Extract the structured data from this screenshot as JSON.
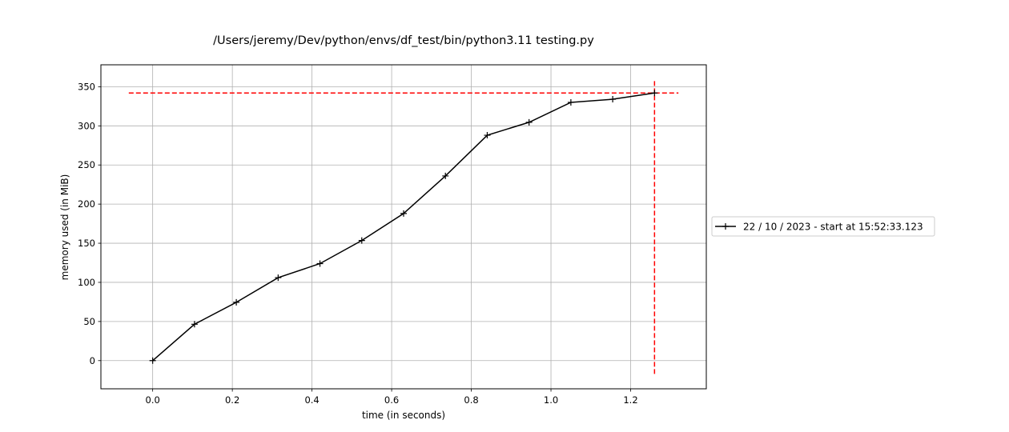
{
  "chart_data": {
    "type": "line",
    "title": "/Users/jeremy/Dev/python/envs/df_test/bin/python3.11 testing.py",
    "xlabel": "time (in seconds)",
    "ylabel": "memory used (in MiB)",
    "xlim": [
      -0.13,
      1.39
    ],
    "ylim": [
      -36,
      378
    ],
    "xticks": [
      0.0,
      0.2,
      0.4,
      0.6,
      0.8,
      1.0,
      1.2
    ],
    "xtick_labels": [
      "0.0",
      "0.2",
      "0.4",
      "0.6",
      "0.8",
      "1.0",
      "1.2"
    ],
    "yticks": [
      0,
      50,
      100,
      150,
      200,
      250,
      300,
      350
    ],
    "ytick_labels": [
      "0",
      "50",
      "100",
      "150",
      "200",
      "250",
      "300",
      "350"
    ],
    "grid": true,
    "legend_position": "center-right, outside plot",
    "series": [
      {
        "name": "22 / 10 / 2023 - start at 15:52:33.123",
        "color": "#000000",
        "marker": "plus",
        "x": [
          0.0,
          0.105,
          0.21,
          0.315,
          0.42,
          0.525,
          0.63,
          0.735,
          0.84,
          0.945,
          1.05,
          1.155,
          1.26
        ],
        "y": [
          0,
          46.5,
          74.5,
          106,
          124,
          153.5,
          188,
          236,
          288,
          304.5,
          330,
          334,
          342
        ]
      }
    ],
    "reference_lines": [
      {
        "orientation": "horizontal",
        "value": 342,
        "from": -0.06,
        "to": 1.32,
        "color": "#ff0000",
        "style": "dashed"
      },
      {
        "orientation": "vertical",
        "value": 1.26,
        "from": -17,
        "to": 360,
        "color": "#ff0000",
        "style": "dashed"
      }
    ]
  }
}
